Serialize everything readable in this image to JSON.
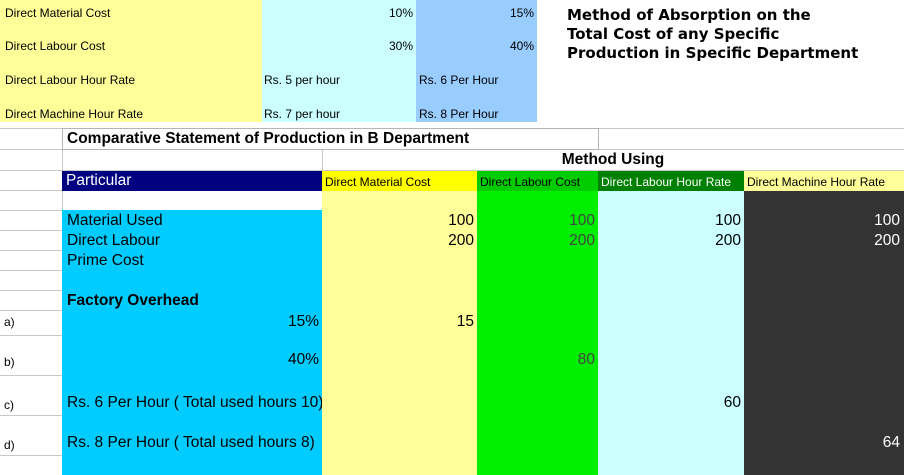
{
  "rates": {
    "rows": [
      {
        "label": "Direct Material Cost",
        "b": "10%",
        "c": "15%"
      },
      {
        "label": "Direct Labour Cost",
        "b": "30%",
        "c": "40%"
      },
      {
        "label": "Direct Labour Hour Rate",
        "b": "Rs. 5 per hour",
        "c": "Rs. 6 Per Hour"
      },
      {
        "label": "Direct Machine Hour Rate",
        "b": "Rs. 7 per hour",
        "c": "Rs. 8 Per Hour"
      }
    ]
  },
  "heading": "Method of Absorption on the\nTotal Cost of any Specific\nProduction in Specific Department",
  "statement": {
    "title": "Comparative Statement of Production  in B Department",
    "method_using": "Method Using",
    "col_particular": "Particular",
    "cols": [
      "Direct Material Cost",
      "Direct Labour Cost",
      "Direct Labour Hour Rate",
      "Direct Machine Hour Rate"
    ],
    "material_used": {
      "label": "Material Used",
      "values": [
        "100",
        "100",
        "100",
        "100"
      ]
    },
    "direct_labour": {
      "label": "Direct Labour",
      "values": [
        "200",
        "200",
        "200",
        "200"
      ]
    },
    "prime_cost": {
      "label": "Prime Cost"
    },
    "factory_overhead": "Factory Overhead",
    "overheads": [
      {
        "marker": "a)",
        "label": "15%",
        "value": "15"
      },
      {
        "marker": "b)",
        "label": "40%",
        "value": "80"
      },
      {
        "marker": "c)",
        "label": "Rs. 6 Per Hour ( Total used hours 10)",
        "value": "60"
      },
      {
        "marker": "d)",
        "label": "Rs. 8 Per Hour ( Total used hours 8)",
        "value": "64"
      }
    ]
  },
  "colors": {
    "pale_yellow": "#ffff99",
    "pale_cyan": "#ccffff",
    "light_blue": "#99ccff",
    "navy": "#000080",
    "bright_yellow": "#ffff00",
    "green": "#00cc00",
    "dark_gray": "#333333",
    "sky_blue": "#00ccff"
  }
}
